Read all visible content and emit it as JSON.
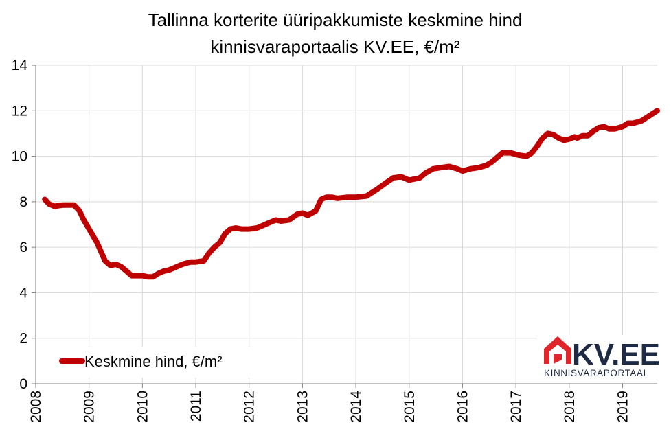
{
  "chart_data": {
    "type": "line",
    "title_line1": "Tallinna korterite üüripakkumiste keskmine hind",
    "title_line2": "kinnisvaraportaalis KV.EE, €/m²",
    "xlabel": "",
    "ylabel": "",
    "ylim": [
      0,
      14
    ],
    "yticks": [
      "0",
      "2",
      "4",
      "6",
      "8",
      "10",
      "12",
      "14"
    ],
    "xlim": [
      2008,
      2019.65
    ],
    "xticks": [
      "2008",
      "2009",
      "2010",
      "2011",
      "2012",
      "2013",
      "2014",
      "2015",
      "2016",
      "2017",
      "2018",
      "2019"
    ],
    "grid": true,
    "legend_position": "bottom-left",
    "series": [
      {
        "name": "Keskmine hind, €/m²",
        "color": "#c00000",
        "x": [
          2008.17,
          2008.25,
          2008.35,
          2008.5,
          2008.6,
          2008.72,
          2008.82,
          2008.9,
          2009.0,
          2009.15,
          2009.3,
          2009.4,
          2009.5,
          2009.6,
          2009.7,
          2009.8,
          2009.9,
          2010.0,
          2010.1,
          2010.2,
          2010.3,
          2010.4,
          2010.5,
          2010.6,
          2010.75,
          2010.9,
          2011.0,
          2011.15,
          2011.25,
          2011.35,
          2011.45,
          2011.55,
          2011.65,
          2011.75,
          2011.85,
          2012.0,
          2012.15,
          2012.25,
          2012.35,
          2012.5,
          2012.6,
          2012.75,
          2012.9,
          2013.0,
          2013.1,
          2013.25,
          2013.35,
          2013.45,
          2013.55,
          2013.65,
          2013.85,
          2014.0,
          2014.2,
          2014.3,
          2014.4,
          2014.55,
          2014.7,
          2014.85,
          2015.0,
          2015.2,
          2015.3,
          2015.45,
          2015.6,
          2015.75,
          2015.9,
          2016.0,
          2016.15,
          2016.3,
          2016.45,
          2016.55,
          2016.65,
          2016.75,
          2016.9,
          2017.05,
          2017.2,
          2017.3,
          2017.4,
          2017.5,
          2017.6,
          2017.7,
          2017.8,
          2017.9,
          2018.0,
          2018.1,
          2018.15,
          2018.25,
          2018.35,
          2018.45,
          2018.55,
          2018.65,
          2018.75,
          2018.85,
          2019.0,
          2019.1,
          2019.2,
          2019.35,
          2019.45,
          2019.55,
          2019.65
        ],
        "values": [
          8.1,
          7.9,
          7.8,
          7.85,
          7.85,
          7.85,
          7.6,
          7.2,
          6.8,
          6.2,
          5.4,
          5.2,
          5.25,
          5.15,
          4.95,
          4.75,
          4.75,
          4.75,
          4.7,
          4.7,
          4.85,
          4.95,
          5.0,
          5.1,
          5.25,
          5.35,
          5.35,
          5.4,
          5.75,
          6.0,
          6.2,
          6.6,
          6.8,
          6.85,
          6.8,
          6.8,
          6.85,
          6.95,
          7.05,
          7.2,
          7.15,
          7.2,
          7.45,
          7.5,
          7.4,
          7.6,
          8.1,
          8.2,
          8.2,
          8.15,
          8.2,
          8.2,
          8.25,
          8.4,
          8.55,
          8.8,
          9.05,
          9.1,
          8.95,
          9.05,
          9.25,
          9.45,
          9.5,
          9.55,
          9.45,
          9.35,
          9.45,
          9.5,
          9.6,
          9.75,
          9.95,
          10.15,
          10.15,
          10.05,
          10.0,
          10.15,
          10.45,
          10.8,
          11.0,
          10.95,
          10.8,
          10.7,
          10.75,
          10.85,
          10.8,
          10.9,
          10.9,
          11.1,
          11.25,
          11.3,
          11.2,
          11.2,
          11.3,
          11.45,
          11.45,
          11.55,
          11.7,
          11.85,
          12.0
        ]
      }
    ]
  },
  "logo": {
    "brand": "KV.EE",
    "tagline": "KINNISVARAPORTAAL",
    "roof_color": "#e0262b",
    "text_color": "#1f2a44"
  }
}
